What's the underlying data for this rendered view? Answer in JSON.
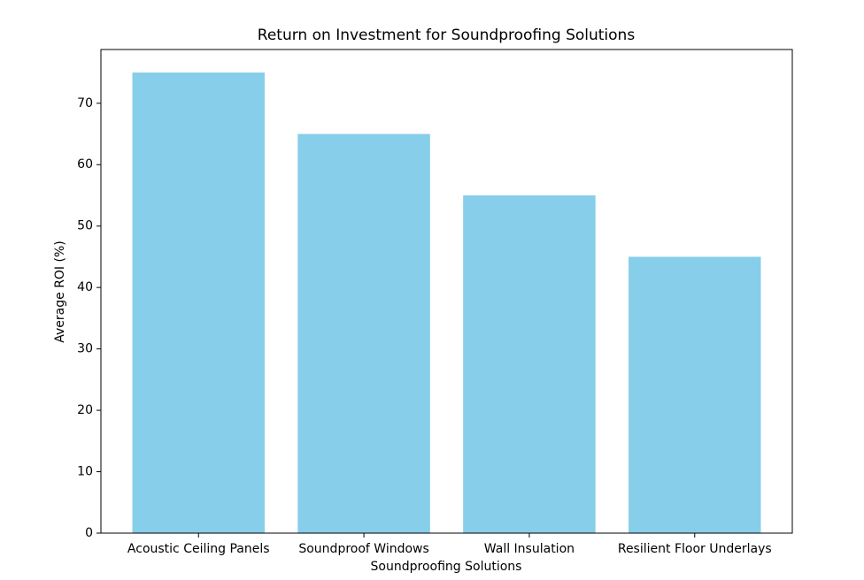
{
  "chart_data": {
    "type": "bar",
    "title": "Return on Investment for Soundproofing Solutions",
    "x_label": "Soundproofing Solutions",
    "y_label": "Average ROI (%)",
    "categories": [
      "Acoustic Ceiling Panels",
      "Soundproof Windows",
      "Wall Insulation",
      "Resilient Floor Underlays"
    ],
    "values": [
      75,
      65,
      55,
      45
    ],
    "color": "#87ceeb",
    "ylim": [
      0,
      78.75
    ],
    "yticks": [
      0,
      10,
      20,
      30,
      40,
      50,
      60,
      70
    ],
    "grid": false
  }
}
